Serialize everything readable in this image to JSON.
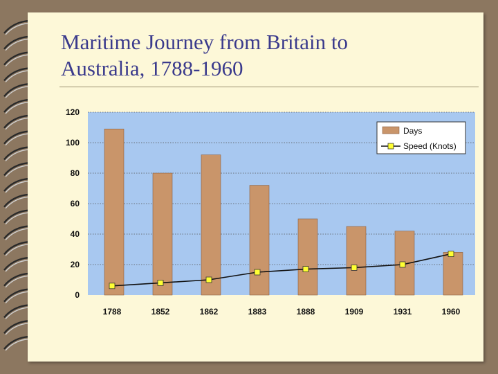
{
  "slide": {
    "title_line1": "Maritime Journey from Britain to",
    "title_line2": "Australia, 1788-1960"
  },
  "colors": {
    "plot_bg": "#a8c8f0",
    "bar": "#c9956a",
    "bar_edge": "#8a6040",
    "line": "#111111",
    "marker": "#ffff33",
    "title": "#3a3a8c"
  },
  "chart_data": {
    "type": "bar",
    "title": "",
    "xlabel": "",
    "ylabel": "",
    "categories": [
      "1788",
      "1852",
      "1862",
      "1883",
      "1888",
      "1909",
      "1931",
      "1960"
    ],
    "series": [
      {
        "name": "Days",
        "type": "bar",
        "values": [
          109,
          80,
          92,
          72,
          50,
          45,
          42,
          28
        ]
      },
      {
        "name": "Speed (Knots)",
        "type": "line",
        "values": [
          6,
          8,
          10,
          15,
          17,
          18,
          20,
          27
        ]
      }
    ],
    "ylim": [
      0,
      120
    ],
    "yticks": [
      0,
      20,
      40,
      60,
      80,
      100,
      120
    ],
    "grid": true,
    "legend": "top-right"
  }
}
